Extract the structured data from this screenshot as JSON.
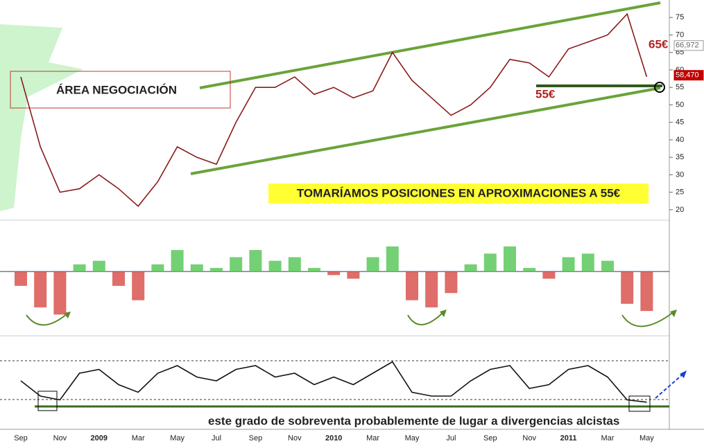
{
  "chart_data": [
    {
      "type": "line",
      "categories": [
        "Sep",
        null,
        "Nov",
        null,
        "2009",
        null,
        "Mar",
        null,
        "May",
        null,
        "Jul",
        null,
        "Sep",
        null,
        "Nov",
        null,
        "2010",
        null,
        "Mar",
        null,
        "May",
        null,
        "Jul",
        null,
        "Sep",
        null,
        "Nov",
        null,
        "2011",
        null,
        "Mar",
        null,
        "May"
      ],
      "values": [
        58,
        38,
        25,
        26,
        30,
        26,
        21,
        28,
        38,
        35,
        33,
        45,
        55,
        55,
        58,
        53,
        55,
        52,
        54,
        65,
        57,
        52,
        47,
        50,
        55,
        63,
        62,
        58,
        66,
        68,
        70,
        76,
        58
      ],
      "color": "#8b1a1a",
      "ylim": [
        17,
        80
      ],
      "yticks": [
        20,
        25,
        30,
        35,
        40,
        45,
        50,
        55,
        60,
        65,
        70,
        75
      ],
      "price_tags": [
        {
          "value": 66.972,
          "label": "66,972",
          "color": "#999999"
        },
        {
          "value": 58.47,
          "label": "58,470",
          "color": "#c00000"
        }
      ],
      "annotations": [
        "ÁREA NEGOCIACIÓN",
        "TOMARÍAMOS POSICIONES EN APROXIMACIONES A 55€",
        "65€",
        "55€"
      ]
    },
    {
      "type": "bar",
      "values": [
        -20,
        -50,
        -60,
        10,
        15,
        -20,
        -40,
        10,
        30,
        10,
        5,
        20,
        30,
        15,
        20,
        5,
        -5,
        -10,
        20,
        35,
        -40,
        -50,
        -30,
        10,
        25,
        35,
        5,
        -10,
        20,
        25,
        15,
        -45,
        -55
      ],
      "ylim": [
        -80,
        60
      ],
      "pos_color": "#5cc85c",
      "neg_color": "#d9534f"
    },
    {
      "type": "line",
      "values": [
        50,
        30,
        25,
        60,
        65,
        45,
        35,
        60,
        70,
        55,
        50,
        65,
        70,
        55,
        60,
        45,
        55,
        45,
        60,
        75,
        35,
        30,
        30,
        50,
        65,
        70,
        40,
        45,
        65,
        70,
        55,
        25,
        22
      ],
      "ylim": [
        0,
        100
      ],
      "color": "#111111",
      "note": "este grado de sobreventa probablemente de lugar a divergencias alcistas"
    }
  ]
}
